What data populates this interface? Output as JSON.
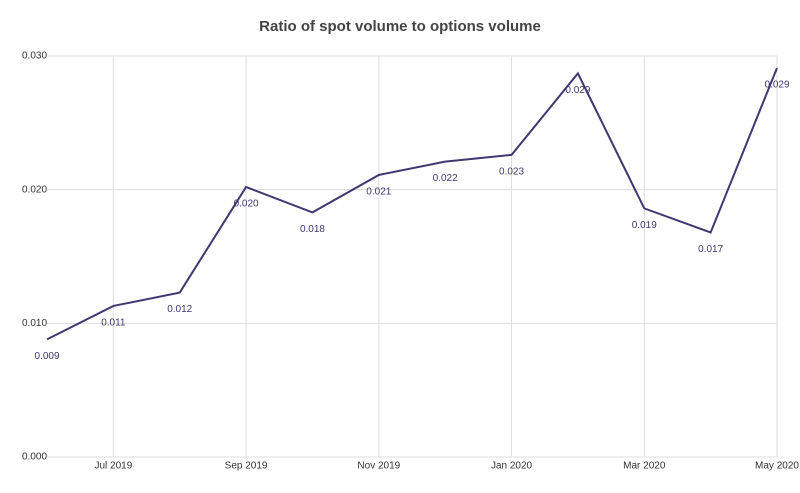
{
  "chart_data": {
    "type": "line",
    "title": "Ratio of spot volume to options volume",
    "categories": [
      null,
      "Jul 2019",
      null,
      "Sep 2019",
      null,
      "Nov 2019",
      null,
      "Jan 2020",
      null,
      "Mar 2020",
      null,
      "May 2020"
    ],
    "series": [
      {
        "color": "#3f3871",
        "values": [
          0.0088,
          0.0113,
          0.0123,
          0.0202,
          0.0183,
          0.0211,
          0.0221,
          0.0226,
          0.0287,
          0.0186,
          0.0168,
          0.0291
        ],
        "value_labels": [
          "0.009",
          "0.011",
          "0.012",
          "0.020",
          "0.018",
          "0.021",
          "0.022",
          "0.023",
          "0.029",
          "0.019",
          "0.017",
          "0.029"
        ]
      }
    ],
    "ylim": [
      0,
      0.03
    ],
    "yticks": [
      {
        "value": 0,
        "label": "0.000"
      },
      {
        "value": 0.01,
        "label": "0.010"
      },
      {
        "value": 0.02,
        "label": "0.020"
      },
      {
        "value": 0.03,
        "label": "0.030"
      }
    ],
    "grid": true
  }
}
